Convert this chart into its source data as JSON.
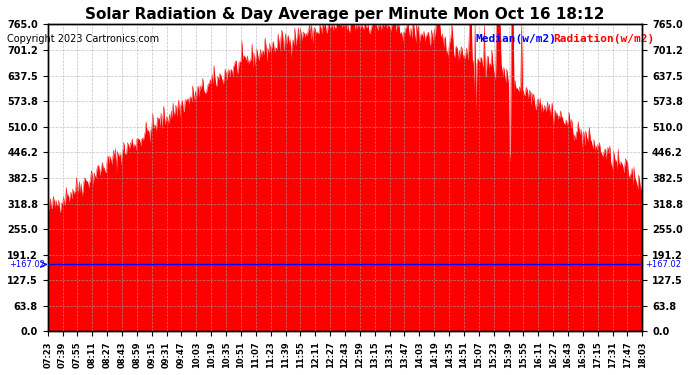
{
  "title": "Solar Radiation & Day Average per Minute Mon Oct 16 18:12",
  "copyright": "Copyright 2023 Cartronics.com",
  "legend_median": "Median(w/m2)",
  "legend_radiation": "Radiation(w/m2)",
  "median_value": 167.02,
  "ymin": 0.0,
  "ymax": 765.0,
  "yticks": [
    0.0,
    63.8,
    127.5,
    191.2,
    255.0,
    318.8,
    382.5,
    446.2,
    510.0,
    573.8,
    637.5,
    701.2,
    765.0
  ],
  "background_color": "#ffffff",
  "radiation_color": "#ff0000",
  "median_color": "#0000ff",
  "title_color": "#000000",
  "grid_color": "#aaaaaa",
  "xtick_start_minutes": 443,
  "xtick_interval_minutes": 16,
  "num_xticks": 34,
  "total_minutes": 641
}
